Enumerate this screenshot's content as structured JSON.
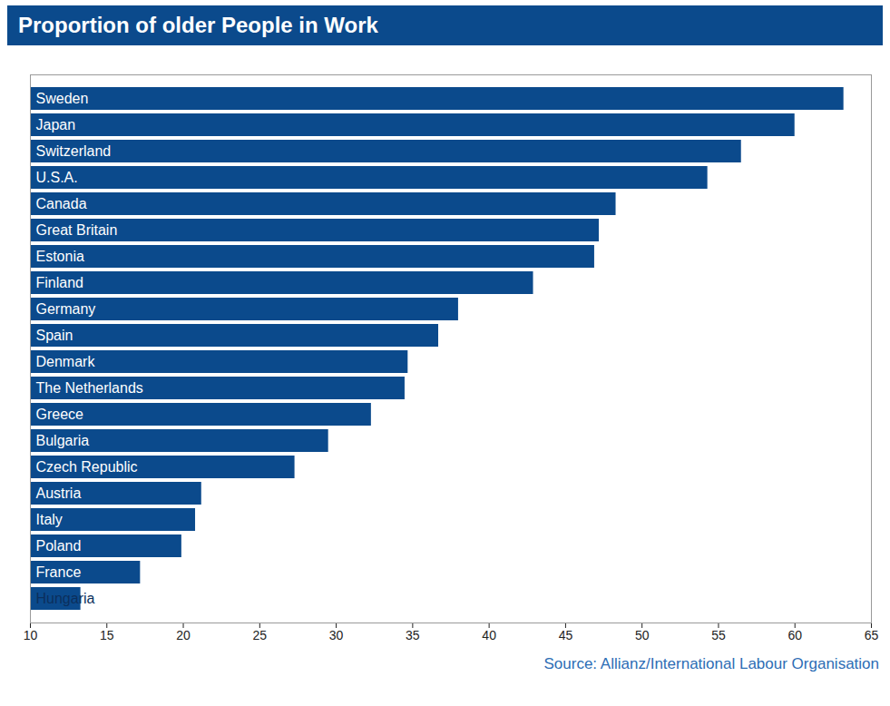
{
  "chart_data": {
    "type": "bar",
    "title": "Proportion of older People in Work",
    "caption": "Source: Allianz/International Labour Organisation",
    "orientation": "horizontal",
    "categories": [
      "Sweden",
      "Japan",
      "Switzerland",
      "U.S.A.",
      "Canada",
      "Great Britain",
      "Estonia",
      "Finland",
      "Germany",
      "Spain",
      "Denmark",
      "The Netherlands",
      "Greece",
      "Bulgaria",
      "Czech Republic",
      "Austria",
      "Italy",
      "Poland",
      "France",
      "Hungaria"
    ],
    "values": [
      63.2,
      60.0,
      56.5,
      54.3,
      48.3,
      47.2,
      46.9,
      42.9,
      38.0,
      36.7,
      34.7,
      34.5,
      32.3,
      29.5,
      27.3,
      21.2,
      20.8,
      19.9,
      17.2,
      13.3
    ],
    "color": "#0b4a8c",
    "xlim": [
      10,
      65
    ],
    "xticks": [
      10,
      15,
      20,
      25,
      30,
      35,
      40,
      45,
      50,
      55,
      60,
      65
    ],
    "grid": false,
    "data_labels": false,
    "tick_labels": "x"
  }
}
